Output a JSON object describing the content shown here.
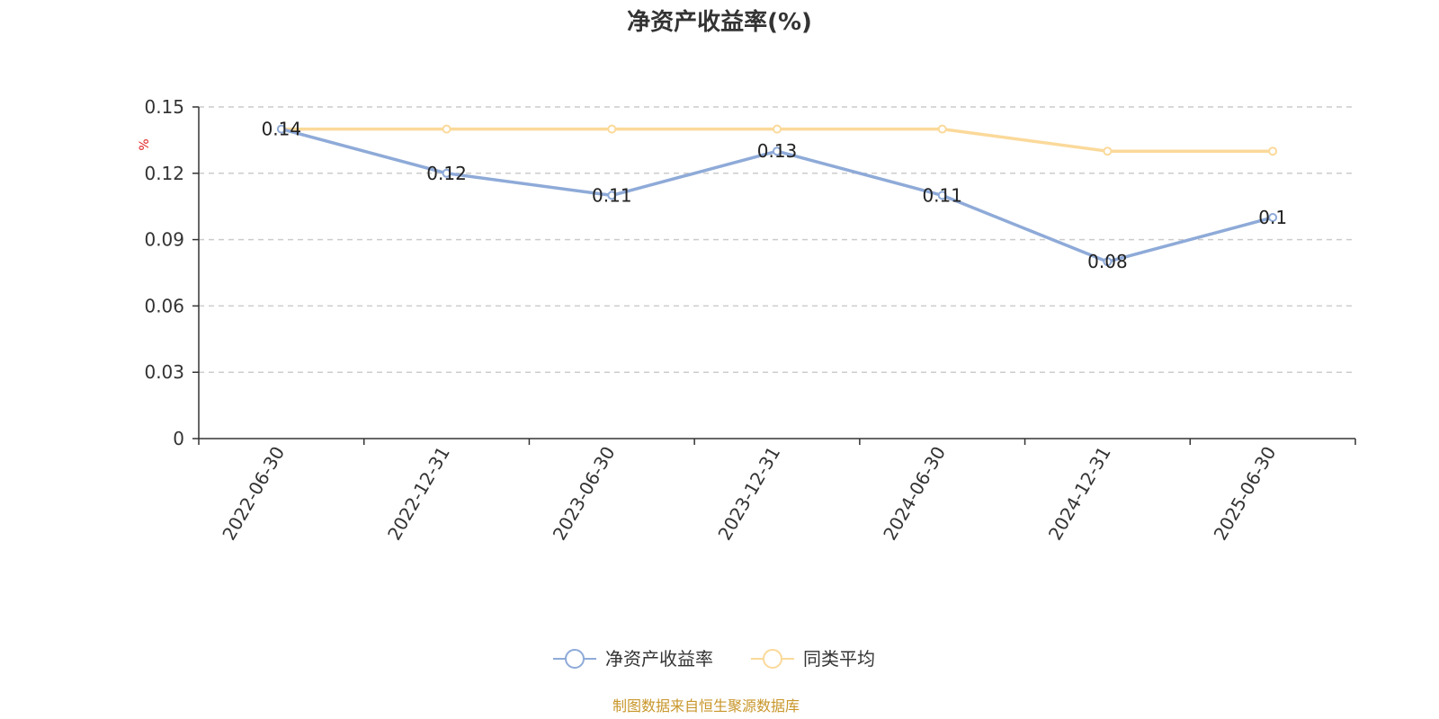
{
  "chart_data": {
    "type": "line",
    "title": "净资产收益率(%)",
    "ylabel": "%",
    "categories": [
      "2022-06-30",
      "2022-12-31",
      "2023-06-30",
      "2023-12-31",
      "2024-06-30",
      "2024-12-31",
      "2025-06-30"
    ],
    "ylim": [
      0,
      0.15
    ],
    "yticks": [
      "0",
      "0.03",
      "0.06",
      "0.09",
      "0.12",
      "0.15"
    ],
    "grid": true,
    "legend_position": "bottom",
    "series": [
      {
        "name": "净资产收益率",
        "values": [
          0.14,
          0.12,
          0.11,
          0.13,
          0.11,
          0.08,
          0.1
        ],
        "labels": [
          "0.14",
          "0.12",
          "0.11",
          "0.13",
          "0.11",
          "0.08",
          "0.1"
        ],
        "color": "#8eaad8"
      },
      {
        "name": "同类平均",
        "values": [
          0.14,
          0.14,
          0.14,
          0.14,
          0.14,
          0.13,
          0.13
        ],
        "color": "#fbd99a"
      }
    ]
  },
  "source_text": "制图数据来自恒生聚源数据库",
  "colors": {
    "axis": "#333333",
    "grid": "#cccccc",
    "unit": "#e02020",
    "source": "#c8962a"
  }
}
